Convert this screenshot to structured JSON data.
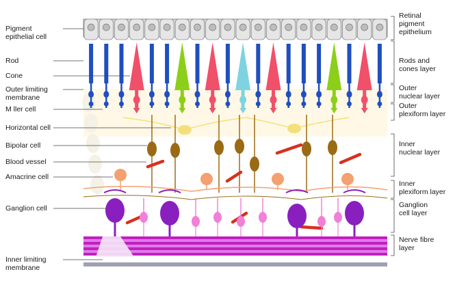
{
  "left_labels": [
    {
      "id": "pigment-epithelial-cell",
      "lines": [
        "Pigment",
        "epithelial cell"
      ]
    },
    {
      "id": "rod",
      "lines": [
        "Rod"
      ]
    },
    {
      "id": "cone",
      "lines": [
        "Cone"
      ]
    },
    {
      "id": "outer-limiting-membrane",
      "lines": [
        "Outer limiting",
        "membrane"
      ]
    },
    {
      "id": "muller-cell",
      "lines": [
        "M  ller cell"
      ]
    },
    {
      "id": "horizontal-cell",
      "lines": [
        "Horizontal cell"
      ]
    },
    {
      "id": "bipolar-cell",
      "lines": [
        "Bipolar cell"
      ]
    },
    {
      "id": "blood-vessel",
      "lines": [
        "Blood vessel"
      ]
    },
    {
      "id": "amacrine-cell",
      "lines": [
        "Amacrine cell"
      ]
    },
    {
      "id": "ganglion-cell",
      "lines": [
        "Ganglion cell"
      ]
    },
    {
      "id": "inner-limiting-membrane",
      "lines": [
        "Inner limiting",
        "membrane"
      ]
    }
  ],
  "right_labels": [
    {
      "id": "retinal-pigment-epithelium",
      "lines": [
        "Retinal",
        "pigment",
        "epithelium"
      ]
    },
    {
      "id": "rods-and-cones-layer",
      "lines": [
        "Rods and",
        "cones layer"
      ]
    },
    {
      "id": "outer-nuclear-layer",
      "lines": [
        "Outer",
        "nuclear layer"
      ]
    },
    {
      "id": "outer-plexiform-layer",
      "lines": [
        "Outer",
        "plexiform layer"
      ]
    },
    {
      "id": "inner-nuclear-layer",
      "lines": [
        "Inner",
        "nuclear layer"
      ]
    },
    {
      "id": "inner-plexiform-layer",
      "lines": [
        "Inner",
        "plexiform layer"
      ]
    },
    {
      "id": "ganglion-cell-layer",
      "lines": [
        "Ganglion",
        "cell layer"
      ]
    },
    {
      "id": "nerve-fibre-layer",
      "lines": [
        "Nerve fibre",
        "layer"
      ]
    }
  ],
  "colors": {
    "rod": "#1f4fbf",
    "cone_red": "#f0506a",
    "cone_green": "#8ccf1a",
    "cone_cyan": "#7fd3e0",
    "bipolar": "#9a6a14",
    "horizontal": "#f4e07a",
    "amacrine": "#f4a070",
    "ganglion": "#8a1fc0",
    "ganglion_pink": "#f080d8",
    "nerve_fibre": "#c020c0",
    "blood_vessel": "#d8301f",
    "pigment_cell": "#dcdcdc",
    "inner_membrane": "#a0a0b4"
  }
}
